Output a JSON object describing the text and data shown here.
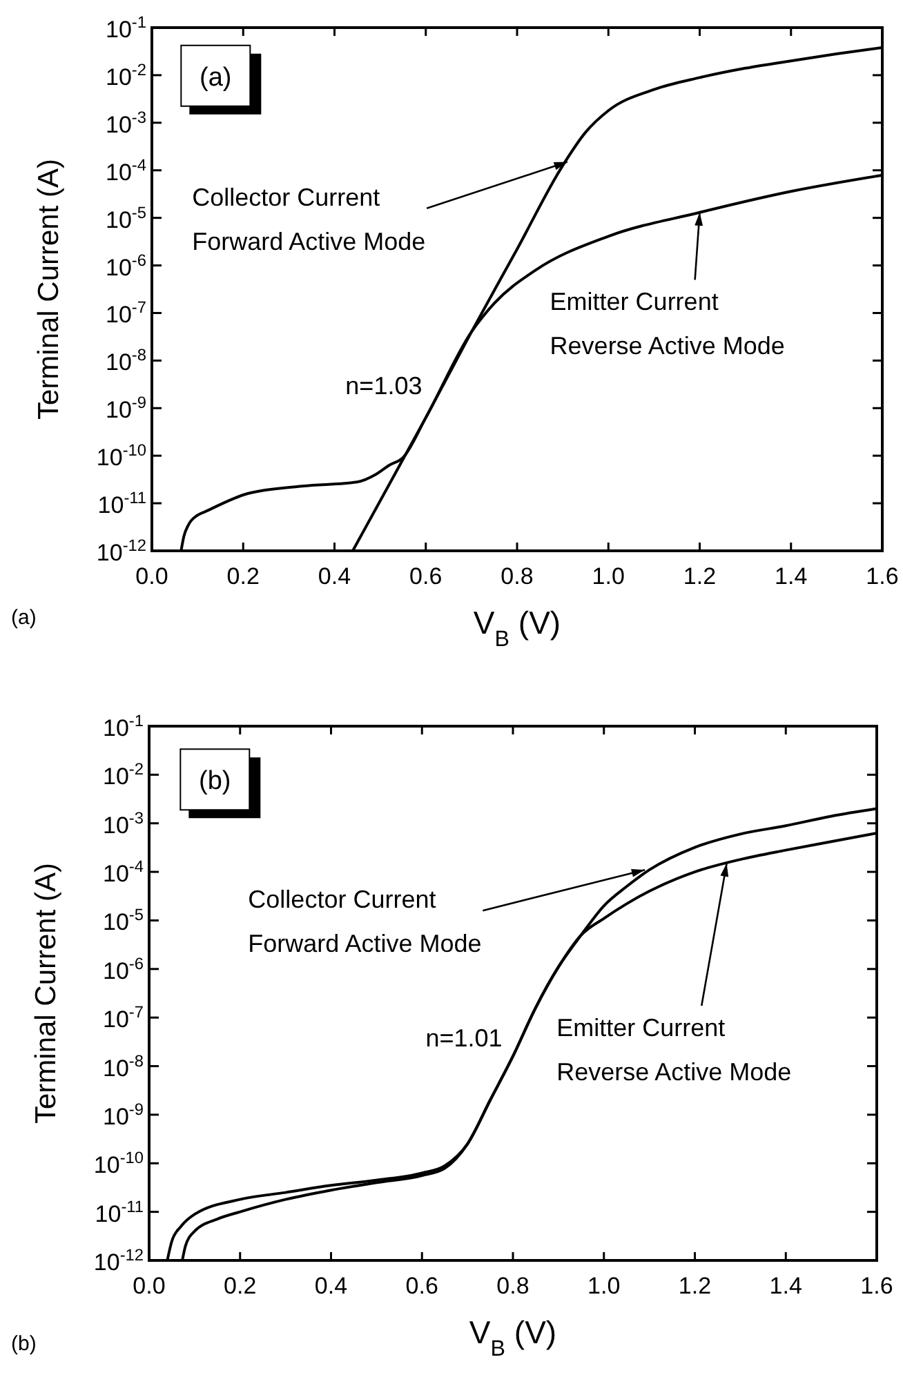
{
  "chart_data": [
    {
      "type": "line",
      "xlabel": "V$_{B}$ (V)",
      "ylabel": "Terminal Current (A)",
      "log": "y",
      "xlim": [
        0,
        1.6
      ],
      "ylim": [
        1e-12,
        0.1
      ],
      "xticks": [
        {
          "value": 0,
          "label": "0.0"
        },
        {
          "value": 0.2,
          "label": "0.2"
        },
        {
          "value": 0.4,
          "label": "0.4"
        },
        {
          "value": 0.6,
          "label": "0.6"
        },
        {
          "value": 0.8,
          "label": "0.8"
        },
        {
          "value": 1,
          "label": "1.0"
        },
        {
          "value": 1.2,
          "label": "1.2"
        },
        {
          "value": 1.4,
          "label": "1.4"
        },
        {
          "value": 1.6,
          "label": "1.6"
        }
      ],
      "yticks": [
        {
          "value": 1e-12,
          "label": "10$^{-12}$"
        },
        {
          "value": 1e-11,
          "label": "10$^{-11}$"
        },
        {
          "value": 1e-10,
          "label": "10$^{-10}$"
        },
        {
          "value": 1e-09,
          "label": "10$^{-9}$"
        },
        {
          "value": 1e-08,
          "label": "10$^{-8}$"
        },
        {
          "value": 1e-07,
          "label": "10$^{-7}$"
        },
        {
          "value": 1e-06,
          "label": "10$^{-6}$"
        },
        {
          "value": 1e-05,
          "label": "10$^{-5}$"
        },
        {
          "value": 0.0001,
          "label": "10$^{-4}$"
        },
        {
          "value": 0.001,
          "label": "10$^{-3}$"
        },
        {
          "value": 0.01,
          "label": "10$^{-2}$"
        },
        {
          "value": 0.1,
          "label": "10$^{-1}$"
        }
      ],
      "series": [
        {
          "color": "#000000",
          "x": [
            0.44,
            0.5,
            0.6,
            0.7,
            0.8,
            0.9,
            0.95,
            1.0,
            1.1,
            1.2,
            1.3,
            1.4,
            1.5,
            1.6
          ],
          "values": [
            1e-12,
            1.12e-11,
            6.3e-10,
            4e-08,
            2.2e-06,
            0.000126,
            0.00063,
            0.0018,
            0.005,
            0.0089,
            0.014,
            0.02,
            0.028,
            0.038
          ]
        },
        {
          "color": "#000000",
          "x": [
            0.064,
            0.07,
            0.08,
            0.1,
            0.116,
            0.21,
            0.33,
            0.45,
            0.49,
            0.52,
            0.55,
            0.6,
            0.7,
            0.75,
            0.84,
            1.0,
            1.2,
            1.4,
            1.6
          ],
          "values": [
            1e-12,
            2e-12,
            3.5e-12,
            5.6e-12,
            6.6e-12,
            1.6e-11,
            2.3e-11,
            2.8e-11,
            4e-11,
            6.3e-11,
            9.1e-11,
            6.3e-10,
            4e-08,
            1.6e-07,
            7.9e-07,
            4.1e-06,
            1.3e-05,
            3.6e-05,
            7.9e-05
          ]
        }
      ],
      "annotations": [
        "(a)",
        {
          "text": "Collector Current Forward Active Mode",
          "x": 0.91,
          "y": 0.00015
        },
        {
          "text": "Emitter Current Reverse Active Mode",
          "x": 1.2,
          "y": 1.3e-05
        },
        "n=1.03",
        "(a)"
      ]
    },
    {
      "type": "line",
      "xlabel": "V$_{B}$ (V)",
      "ylabel": "Terminal Current (A)",
      "log": "y",
      "xlim": [
        0,
        1.6
      ],
      "ylim": [
        1e-12,
        0.1
      ],
      "xticks": [
        {
          "value": 0,
          "label": "0.0"
        },
        {
          "value": 0.2,
          "label": "0.2"
        },
        {
          "value": 0.4,
          "label": "0.4"
        },
        {
          "value": 0.6,
          "label": "0.6"
        },
        {
          "value": 0.8,
          "label": "0.8"
        },
        {
          "value": 1,
          "label": "1.0"
        },
        {
          "value": 1.2,
          "label": "1.2"
        },
        {
          "value": 1.4,
          "label": "1.4"
        },
        {
          "value": 1.6,
          "label": "1.6"
        }
      ],
      "yticks": [
        {
          "value": 1e-12,
          "label": "10$^{-12}$"
        },
        {
          "value": 1e-11,
          "label": "10$^{-11}$"
        },
        {
          "value": 1e-10,
          "label": "10$^{-10}$"
        },
        {
          "value": 1e-09,
          "label": "10$^{-9}$"
        },
        {
          "value": 1e-08,
          "label": "10$^{-8}$"
        },
        {
          "value": 1e-07,
          "label": "10$^{-7}$"
        },
        {
          "value": 1e-06,
          "label": "10$^{-6}$"
        },
        {
          "value": 1e-05,
          "label": "10$^{-5}$"
        },
        {
          "value": 0.0001,
          "label": "10$^{-4}$"
        },
        {
          "value": 0.001,
          "label": "10$^{-3}$"
        },
        {
          "value": 0.01,
          "label": "10$^{-2}$"
        },
        {
          "value": 0.1,
          "label": "10$^{-1}$"
        }
      ],
      "series": [
        {
          "color": "#000000",
          "x": [
            0.073,
            0.08,
            0.1,
            0.15,
            0.2,
            0.3,
            0.4,
            0.5,
            0.6,
            0.65,
            0.7,
            0.75,
            0.8,
            0.85,
            0.9,
            0.95,
            1.0,
            1.05,
            1.1,
            1.2,
            1.3,
            1.4,
            1.5,
            1.6
          ],
          "values": [
            1e-12,
            2e-12,
            4e-12,
            7.1e-12,
            1e-11,
            1.8e-11,
            2.8e-11,
            4e-11,
            5.6e-11,
            7.9e-11,
            2.5e-10,
            2e-09,
            1.6e-08,
            1.6e-07,
            1.1e-06,
            5e-06,
            2e-05,
            5e-05,
            0.00011,
            0.00032,
            0.0006,
            0.00089,
            0.0014,
            0.002
          ]
        },
        {
          "color": "#000000",
          "x": [
            0.04,
            0.05,
            0.07,
            0.1,
            0.2,
            0.3,
            0.4,
            0.5,
            0.6,
            0.65,
            0.7,
            0.75,
            0.8,
            0.85,
            0.9,
            0.95,
            1.0,
            1.05,
            1.1,
            1.2,
            1.3,
            1.4,
            1.5,
            1.6
          ],
          "values": [
            1e-12,
            2.5e-12,
            5e-12,
            8.9e-12,
            1.8e-11,
            2.5e-11,
            3.5e-11,
            4.5e-11,
            6.3e-11,
            8.9e-11,
            2.5e-10,
            2e-09,
            1.6e-08,
            1.6e-07,
            1.1e-06,
            5e-06,
            1.1e-05,
            2.2e-05,
            4e-05,
            0.0001,
            0.00018,
            0.00028,
            0.00042,
            0.00063
          ]
        }
      ],
      "annotations": [
        "(b)",
        {
          "text": "Collector Current Forward Active Mode",
          "x": 1.09,
          "y": 0.00011
        },
        {
          "text": "Emitter Current Reverse Active Mode",
          "x": 1.27,
          "y": 0.00015
        },
        "n=1.01",
        "(b)"
      ]
    }
  ]
}
